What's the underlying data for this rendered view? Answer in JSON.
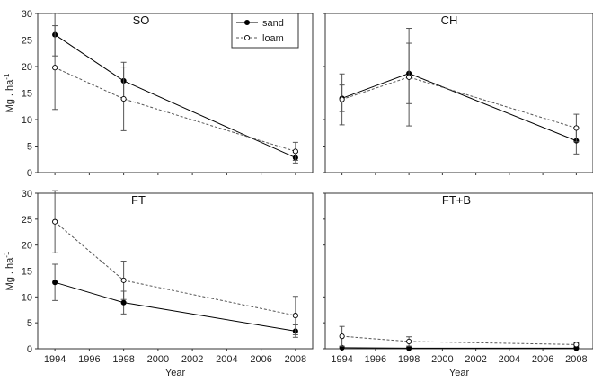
{
  "chart_data": [
    {
      "type": "line",
      "title": "SO",
      "xlabel": "",
      "ylabel": "Mg . ha",
      "ylabel_sup": "-1",
      "x": [
        1994,
        1998,
        2008
      ],
      "xlim": [
        1993,
        2009
      ],
      "ylim": [
        0,
        30
      ],
      "yticks": [
        "0",
        "5",
        "10",
        "15",
        "20",
        "25",
        "30"
      ],
      "xticks": [],
      "series": [
        {
          "name": "sand",
          "values": [
            26.0,
            17.3,
            2.8
          ],
          "err": [
            4.0,
            3.5,
            1.0
          ]
        },
        {
          "name": "loam",
          "values": [
            19.8,
            13.9,
            4.0
          ],
          "err": [
            7.9,
            6.0,
            1.7
          ]
        }
      ]
    },
    {
      "type": "line",
      "title": "CH",
      "xlabel": "",
      "ylabel": "",
      "x": [
        1994,
        1998,
        2008
      ],
      "xlim": [
        1993,
        2009
      ],
      "ylim": [
        0,
        30
      ],
      "yticks": [],
      "xticks": [],
      "series": [
        {
          "name": "sand",
          "values": [
            14.0,
            18.7,
            6.0
          ],
          "err": [
            2.5,
            5.7,
            2.5
          ]
        },
        {
          "name": "loam",
          "values": [
            13.8,
            18.0,
            8.4
          ],
          "err": [
            4.8,
            9.2,
            2.6
          ]
        }
      ]
    },
    {
      "type": "line",
      "title": "FT",
      "xlabel": "Year",
      "ylabel": "Mg . ha",
      "ylabel_sup": "-1",
      "x": [
        1994,
        1998,
        2008
      ],
      "xlim": [
        1993,
        2009
      ],
      "ylim": [
        0,
        30
      ],
      "yticks": [
        "0",
        "5",
        "10",
        "15",
        "20",
        "25",
        "30"
      ],
      "xticks": [
        "1994",
        "1996",
        "1998",
        "2000",
        "2002",
        "2004",
        "2006",
        "2008"
      ],
      "series": [
        {
          "name": "sand",
          "values": [
            12.8,
            8.9,
            3.4
          ],
          "err": [
            3.5,
            2.2,
            1.2
          ]
        },
        {
          "name": "loam",
          "values": [
            24.5,
            13.2,
            6.4
          ],
          "err": [
            6.0,
            3.7,
            3.7
          ]
        }
      ]
    },
    {
      "type": "line",
      "title": "FT+B",
      "xlabel": "Year",
      "ylabel": "",
      "x": [
        1994,
        1998,
        2008
      ],
      "xlim": [
        1993,
        2009
      ],
      "ylim": [
        0,
        30
      ],
      "yticks": [],
      "xticks": [
        "1994",
        "1996",
        "1998",
        "2000",
        "2002",
        "2004",
        "2006",
        "2008"
      ],
      "series": [
        {
          "name": "sand",
          "values": [
            0.2,
            0.1,
            0.1
          ],
          "err": [
            0.2,
            0.1,
            0.1
          ]
        },
        {
          "name": "loam",
          "values": [
            2.4,
            1.4,
            0.8
          ],
          "err": [
            1.9,
            0.9,
            0.3
          ]
        }
      ]
    }
  ],
  "legend": {
    "position": "top-right of first panel",
    "entries": [
      "sand",
      "loam"
    ]
  },
  "style": {
    "sand_color": "#000000",
    "loam_color": "#555555",
    "axis_color": "#333333"
  }
}
